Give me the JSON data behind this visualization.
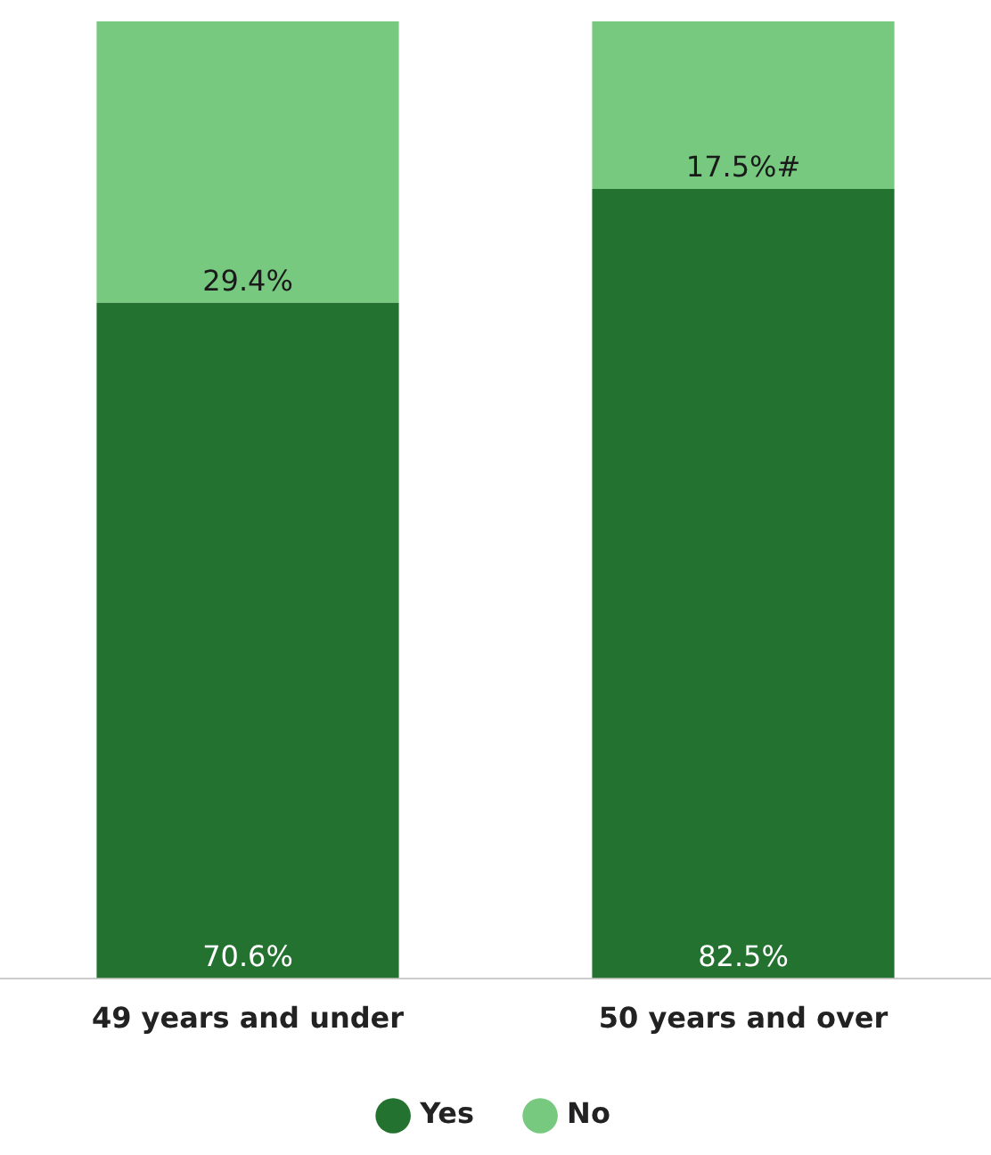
{
  "chart_data": {
    "type": "bar",
    "stacked": true,
    "categories": [
      "49 years and under",
      "50 years and over"
    ],
    "ylim": [
      0,
      100
    ],
    "tick_labels": "x",
    "grid": false,
    "legend": "bottom",
    "series": [
      {
        "name": "Yes",
        "color": "#24722f",
        "values": [
          70.6,
          82.5
        ],
        "value_labels": [
          "70.6%",
          "82.5%"
        ]
      },
      {
        "name": "No",
        "color": "#77c97f",
        "values": [
          29.4,
          17.5
        ],
        "value_labels": [
          "29.4%",
          "17.5%#"
        ]
      }
    ]
  }
}
